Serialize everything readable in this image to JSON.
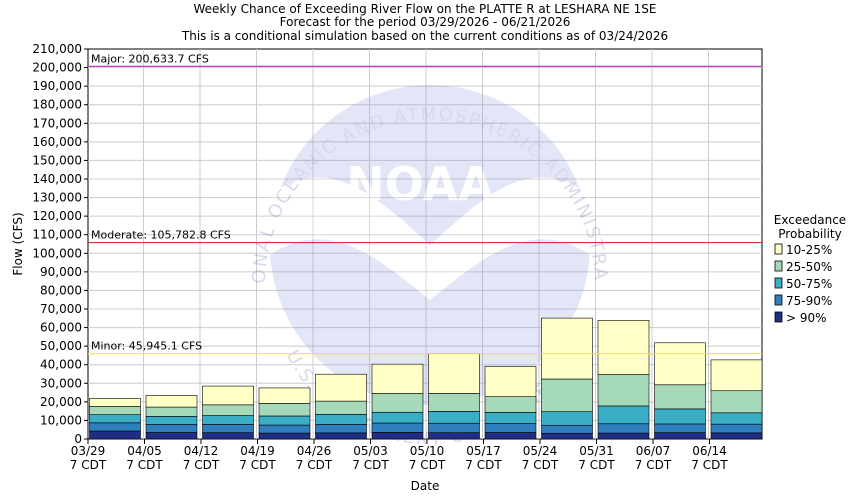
{
  "chart_data": {
    "type": "bar",
    "stacked": true,
    "title_lines": [
      "Weekly Chance of Exceeding River Flow on the PLATTE R at LESHARA NE 1SE",
      "Forecast for the period 03/29/2026 - 06/21/2026",
      "This is a conditional simulation based on the current conditions as of 03/24/2026"
    ],
    "xlabel": "Date",
    "ylabel": "Flow (CFS)",
    "ylim": [
      0,
      210000
    ],
    "ytick_step": 10000,
    "ytick_labels": [
      "0",
      "10,000",
      "20,000",
      "30,000",
      "40,000",
      "50,000",
      "60,000",
      "70,000",
      "80,000",
      "90,000",
      "100,000",
      "110,000",
      "120,000",
      "130,000",
      "140,000",
      "150,000",
      "160,000",
      "170,000",
      "180,000",
      "190,000",
      "200,000",
      "210,000"
    ],
    "x_ticks": [
      {
        "date": "03/29",
        "sub": "7 CDT"
      },
      {
        "date": "04/05",
        "sub": "7 CDT"
      },
      {
        "date": "04/12",
        "sub": "7 CDT"
      },
      {
        "date": "04/19",
        "sub": "7 CDT"
      },
      {
        "date": "04/26",
        "sub": "7 CDT"
      },
      {
        "date": "05/03",
        "sub": "7 CDT"
      },
      {
        "date": "05/10",
        "sub": "7 CDT"
      },
      {
        "date": "05/17",
        "sub": "7 CDT"
      },
      {
        "date": "05/24",
        "sub": "7 CDT"
      },
      {
        "date": "05/31",
        "sub": "7 CDT"
      },
      {
        "date": "06/07",
        "sub": "7 CDT"
      },
      {
        "date": "06/14",
        "sub": "7 CDT"
      }
    ],
    "weeks": [
      "03/29",
      "04/05",
      "04/12",
      "04/19",
      "04/26",
      "05/03",
      "05/10",
      "05/17",
      "05/24",
      "05/31",
      "06/07",
      "06/14"
    ],
    "series": [
      {
        "name": "> 90%",
        "color": "#1f2f86",
        "values": [
          4300,
          3500,
          3400,
          3200,
          3300,
          3600,
          3400,
          3500,
          3100,
          3200,
          3400,
          3300
        ]
      },
      {
        "name": "75-90%",
        "color": "#2f7fbf",
        "values": [
          4400,
          4300,
          4500,
          4300,
          4600,
          5000,
          5100,
          4800,
          4300,
          5000,
          4700,
          4700
        ]
      },
      {
        "name": "50-75%",
        "color": "#3aaec5",
        "values": [
          4400,
          4400,
          4700,
          4900,
          5400,
          5800,
          6400,
          6000,
          7300,
          9600,
          8100,
          6100
        ]
      },
      {
        "name": "25-50%",
        "color": "#a6d9b7",
        "values": [
          4400,
          5000,
          5800,
          6800,
          7100,
          10100,
          9700,
          8500,
          17600,
          16900,
          13000,
          11900
        ]
      },
      {
        "name": "10-25%",
        "color": "#ffffc6",
        "values": [
          4400,
          6300,
          10100,
          8300,
          14500,
          15800,
          21400,
          16300,
          32800,
          29200,
          22600,
          16600
        ]
      }
    ],
    "thresholds": [
      {
        "label": "Major: 200,633.7 CFS",
        "value": 200633.7,
        "color": "#c040c0"
      },
      {
        "label": "Moderate: 105,782.8 CFS",
        "value": 105782.8,
        "color": "#e03040"
      },
      {
        "label": "Minor: 45,945.1 CFS",
        "value": 45945.1,
        "color": "#f0e060"
      }
    ],
    "legend": {
      "title_lines": [
        "Exceedance",
        "Probability"
      ],
      "placement": "right",
      "items": [
        {
          "label": "10-25%",
          "color": "#ffffc6"
        },
        {
          "label": "25-50%",
          "color": "#a6d9b7"
        },
        {
          "label": "50-75%",
          "color": "#3aaec5"
        },
        {
          "label": "75-90%",
          "color": "#2f7fbf"
        },
        {
          "label": "> 90%",
          "color": "#1f2f86"
        }
      ]
    },
    "grid": true,
    "watermark": {
      "text": "NOAA",
      "ring_top": "NATIONAL OCEANIC AND ATMOSPHERIC ADMINISTRATION",
      "ring_bottom": "U.S. DEPARTMENT OF COMMERCE"
    }
  }
}
